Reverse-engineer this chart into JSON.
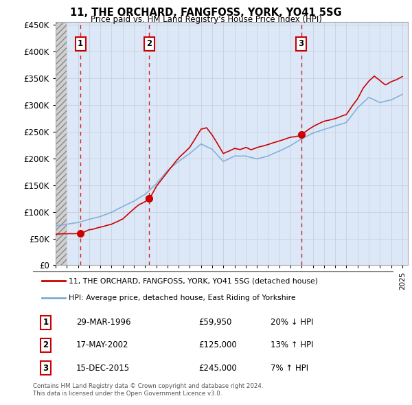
{
  "title": "11, THE ORCHARD, FANGFOSS, YORK, YO41 5SG",
  "subtitle": "Price paid vs. HM Land Registry's House Price Index (HPI)",
  "transactions": [
    {
      "date_num": 1996.22,
      "price": 59950,
      "label": "1"
    },
    {
      "date_num": 2002.38,
      "price": 125000,
      "label": "2"
    },
    {
      "date_num": 2015.96,
      "price": 245000,
      "label": "3"
    }
  ],
  "transaction_labels": [
    {
      "num": "1",
      "date": "29-MAR-1996",
      "price": "£59,950",
      "pct": "20% ↓ HPI"
    },
    {
      "num": "2",
      "date": "17-MAY-2002",
      "price": "£125,000",
      "pct": "13% ↑ HPI"
    },
    {
      "num": "3",
      "date": "15-DEC-2015",
      "price": "£245,000",
      "pct": "7% ↑ HPI"
    }
  ],
  "legend_red": "11, THE ORCHARD, FANGFOSS, YORK, YO41 5SG (detached house)",
  "legend_blue": "HPI: Average price, detached house, East Riding of Yorkshire",
  "footer": "Contains HM Land Registry data © Crown copyright and database right 2024.\nThis data is licensed under the Open Government Licence v3.0.",
  "grid_color": "#c8d0dc",
  "bg_plot": "#dce8f8",
  "red_line_color": "#cc0000",
  "blue_line_color": "#7bacd4"
}
